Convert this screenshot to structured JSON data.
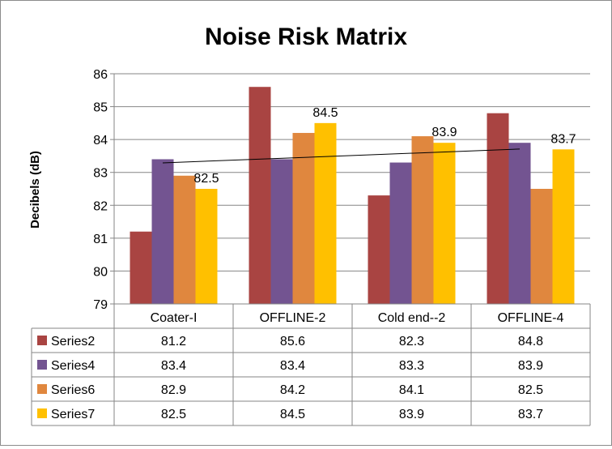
{
  "chart_data": {
    "type": "bar",
    "title": "Noise Risk Matrix",
    "ylabel": "Decibels (dB)",
    "xlabel": "",
    "ylim": [
      79,
      86
    ],
    "yticks": [
      79,
      80,
      81,
      82,
      83,
      84,
      85,
      86
    ],
    "grid": true,
    "legend": "data-table",
    "categories": [
      "Coater-I",
      "OFFLINE-2",
      "Cold end--2",
      "OFFLINE-4"
    ],
    "series": [
      {
        "name": "Series2",
        "color": "#A94442",
        "values": [
          81.2,
          85.6,
          82.3,
          84.8
        ]
      },
      {
        "name": "Series4",
        "color": "#735491",
        "values": [
          83.4,
          83.4,
          83.3,
          83.9
        ]
      },
      {
        "name": "Series6",
        "color": "#E0873E",
        "values": [
          82.9,
          84.2,
          84.1,
          82.5
        ]
      },
      {
        "name": "Series7",
        "color": "#FFC000",
        "values": [
          82.5,
          84.5,
          83.9,
          83.7
        ]
      }
    ],
    "data_labels": {
      "series": "Series7",
      "values": [
        "82.5",
        "84.5",
        "83.9",
        "83.7"
      ]
    },
    "trendline": {
      "series": "Series4",
      "type": "linear"
    }
  }
}
